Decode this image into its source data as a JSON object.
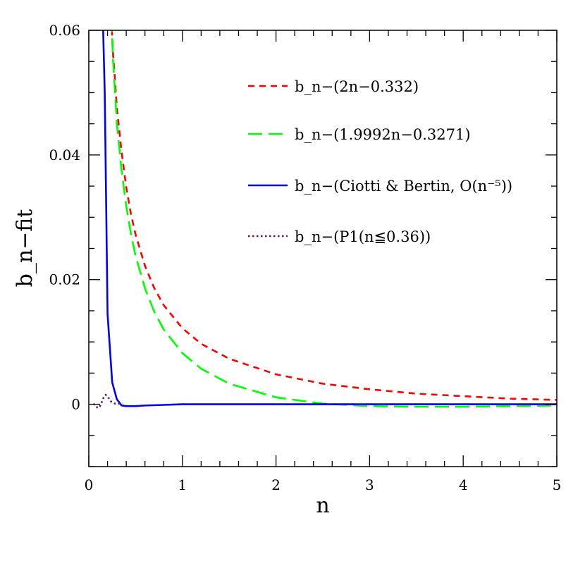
{
  "chart_data": {
    "type": "line",
    "title": "",
    "xlabel": "n",
    "ylabel": "b_n−fit",
    "xlim": [
      0,
      5
    ],
    "ylim": [
      -0.01,
      0.06
    ],
    "x_ticks": [
      0,
      1,
      2,
      3,
      4,
      5
    ],
    "x_tick_labels": [
      "0",
      "1",
      "2",
      "3",
      "4",
      "5"
    ],
    "y_ticks": [
      0,
      0.02,
      0.04,
      0.06
    ],
    "y_tick_labels": [
      "0",
      "0.02",
      "0.04",
      "0.06"
    ],
    "x_minor_step": 0.2,
    "y_minor_step": 0.005,
    "grid": false,
    "legend_position": "top-right",
    "series": [
      {
        "name": "b_n−(2n−0.332)",
        "color": "#ff0000",
        "dash": "short-dash",
        "x": [
          0.24,
          0.26,
          0.28,
          0.3,
          0.35,
          0.4,
          0.45,
          0.5,
          0.6,
          0.7,
          0.8,
          1.0,
          1.2,
          1.5,
          2.0,
          2.5,
          3.0,
          3.5,
          4.0,
          4.5,
          5.0
        ],
        "y": [
          0.062,
          0.056,
          0.052,
          0.0475,
          0.0405,
          0.0348,
          0.0305,
          0.0272,
          0.0222,
          0.0186,
          0.0159,
          0.0122,
          0.0097,
          0.0073,
          0.0048,
          0.0033,
          0.0024,
          0.0017,
          0.0013,
          0.0009,
          0.0007
        ]
      },
      {
        "name": "b_n−(1.9992n−0.3271)",
        "color": "#00ff00",
        "dash": "long-dash",
        "x": [
          0.24,
          0.26,
          0.28,
          0.3,
          0.35,
          0.4,
          0.45,
          0.5,
          0.6,
          0.7,
          0.8,
          1.0,
          1.2,
          1.5,
          2.0,
          2.5,
          3.0,
          3.5,
          4.0,
          4.5,
          5.0
        ],
        "y": [
          0.062,
          0.055,
          0.05,
          0.045,
          0.0375,
          0.0318,
          0.0273,
          0.0238,
          0.0186,
          0.0148,
          0.012,
          0.0082,
          0.0057,
          0.0033,
          0.0011,
          0.0001,
          -0.0003,
          -0.0004,
          -0.0004,
          -0.0003,
          -0.0002
        ]
      },
      {
        "name": "b_n−(Ciotti & Bertin, O(n⁻⁵))",
        "color": "#0000ff",
        "dash": "solid",
        "x": [
          0.15,
          0.17,
          0.2,
          0.25,
          0.3,
          0.35,
          0.4,
          0.5,
          0.6,
          0.8,
          1.0,
          2.0,
          3.0,
          4.0,
          5.0
        ],
        "y": [
          0.062,
          0.05,
          0.0145,
          0.0035,
          0.0008,
          -0.0002,
          -0.0003,
          -0.0003,
          -0.0002,
          -0.0001,
          0.0,
          0.0,
          0.0,
          0.0,
          0.0
        ]
      },
      {
        "name": "b_n−(P1(n≦0.36))",
        "color": "#5b1a5b",
        "dash": "dotted",
        "x": [
          0.05,
          0.08,
          0.1,
          0.12,
          0.14,
          0.16,
          0.18,
          0.2,
          0.22,
          0.24,
          0.26,
          0.28,
          0.3,
          0.32,
          0.34,
          0.36
        ],
        "y": [
          0.0001,
          -0.0004,
          -0.0006,
          -0.0003,
          0.0004,
          0.0011,
          0.0015,
          0.0013,
          0.0008,
          0.0004,
          0.0002,
          0.0001,
          0.0001,
          0.0001,
          0.0001,
          0.0001
        ]
      }
    ]
  }
}
